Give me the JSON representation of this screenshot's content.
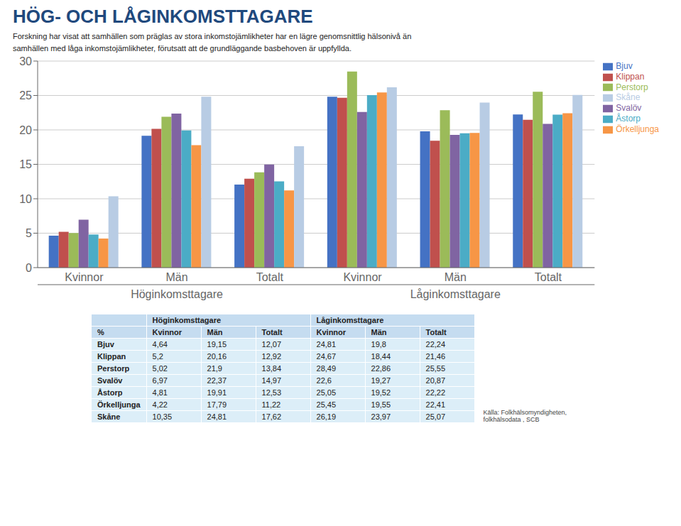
{
  "chart_data": {
    "type": "bar",
    "title": "HÖG- OCH LÅGINKOMSTTAGARE",
    "subtitle": "Forskning har visat att samhällen som präglas av stora inkomstojämlikheter har en lägre genomsnittlig hälsonivå än\nsamhällen med låga inkomstojämlikheter, förutsatt att de grundläggande basbehoven är uppfyllda.",
    "categories": [
      "Kvinnor",
      "Män",
      "Totalt",
      "Kvinnor",
      "Män",
      "Totalt"
    ],
    "group_labels": [
      "Höginkomsttagare",
      "Låginkomsttagare"
    ],
    "series": [
      {
        "name": "Bjuv",
        "color": "#4472C4",
        "values": [
          4.64,
          19.15,
          12.07,
          24.81,
          19.8,
          22.24
        ]
      },
      {
        "name": "Klippan",
        "color": "#C0504D",
        "values": [
          5.2,
          20.16,
          12.92,
          24.67,
          18.44,
          21.46
        ]
      },
      {
        "name": "Perstorp",
        "color": "#9BBB59",
        "values": [
          5.02,
          21.9,
          13.84,
          28.49,
          22.86,
          25.55
        ]
      },
      {
        "name": "Svalöv",
        "color": "#8064A2",
        "values": [
          6.97,
          22.37,
          14.97,
          22.6,
          19.27,
          20.87
        ]
      },
      {
        "name": "Åstorp",
        "color": "#4BACC6",
        "values": [
          4.81,
          19.91,
          12.53,
          25.05,
          19.52,
          22.22
        ]
      },
      {
        "name": "Örkelljunga",
        "color": "#F79646",
        "values": [
          4.22,
          17.79,
          11.22,
          25.45,
          19.55,
          22.41
        ]
      },
      {
        "name": "Skåne",
        "color": "#B8CCE4",
        "values": [
          10.35,
          24.81,
          17.62,
          26.19,
          23.97,
          25.07
        ]
      }
    ],
    "ylim": [
      0,
      30
    ],
    "yticks": [
      0,
      5,
      10,
      15,
      20,
      25,
      30
    ],
    "grid": true,
    "legend": "right",
    "table": {
      "headers": [
        "%",
        "Kvinnor",
        "Män",
        "Totalt",
        "Kvinnor",
        "Män",
        "Totalt"
      ],
      "rows": [
        [
          "Bjuv",
          "4,64",
          "19,15",
          "12,07",
          "24,81",
          "19,8",
          "22,24"
        ],
        [
          "Klippan",
          "5,2",
          "20,16",
          "12,92",
          "24,67",
          "18,44",
          "21,46"
        ],
        [
          "Perstorp",
          "5,02",
          "21,9",
          "13,84",
          "28,49",
          "22,86",
          "25,55"
        ],
        [
          "Svalöv",
          "6,97",
          "22,37",
          "14,97",
          "22,6",
          "19,27",
          "20,87"
        ],
        [
          "Åstorp",
          "4,81",
          "19,91",
          "12,53",
          "25,05",
          "19,52",
          "22,22"
        ],
        [
          "Örkelljunga",
          "4,22",
          "17,79",
          "11,22",
          "25,45",
          "19,55",
          "22,41"
        ],
        [
          "Skåne",
          "10,35",
          "24,81",
          "17,62",
          "26,19",
          "23,97",
          "25,07"
        ]
      ]
    },
    "source": "Källa: Folkhälsomyndigheten,\nfolkhälsodata , SCB"
  }
}
